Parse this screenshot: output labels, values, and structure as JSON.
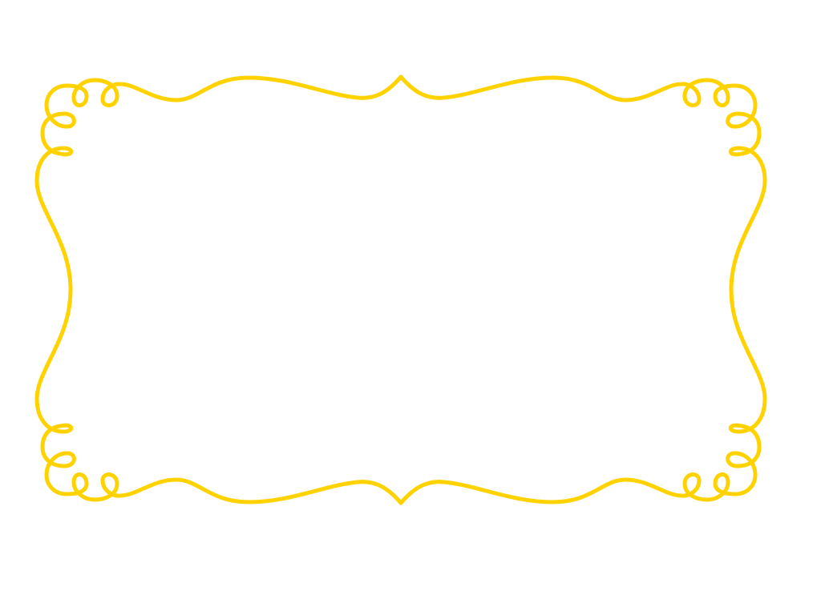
{
  "frame": {
    "style": "decorative-scroll-frame",
    "stroke_color": "#FFD200",
    "background_color": "#FFFFFF"
  }
}
